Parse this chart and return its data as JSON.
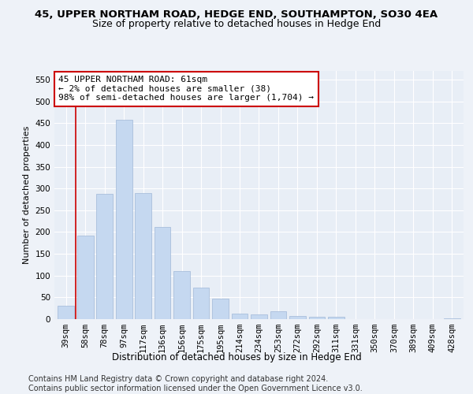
{
  "title": "45, UPPER NORTHAM ROAD, HEDGE END, SOUTHAMPTON, SO30 4EA",
  "subtitle": "Size of property relative to detached houses in Hedge End",
  "xlabel": "Distribution of detached houses by size in Hedge End",
  "ylabel": "Number of detached properties",
  "categories": [
    "39sqm",
    "58sqm",
    "78sqm",
    "97sqm",
    "117sqm",
    "136sqm",
    "156sqm",
    "175sqm",
    "195sqm",
    "214sqm",
    "234sqm",
    "253sqm",
    "272sqm",
    "292sqm",
    "311sqm",
    "331sqm",
    "350sqm",
    "370sqm",
    "389sqm",
    "409sqm",
    "428sqm"
  ],
  "values": [
    30,
    192,
    287,
    457,
    290,
    212,
    110,
    73,
    47,
    12,
    11,
    18,
    7,
    5,
    5,
    0,
    0,
    0,
    0,
    0,
    2
  ],
  "bar_color": "#c5d8f0",
  "bar_edge_color": "#a0b8d8",
  "annotation_text_line1": "45 UPPER NORTHAM ROAD: 61sqm",
  "annotation_text_line2": "← 2% of detached houses are smaller (38)",
  "annotation_text_line3": "98% of semi-detached houses are larger (1,704) →",
  "annotation_box_color": "#cc0000",
  "vline_x": 0.5,
  "ylim": [
    0,
    570
  ],
  "yticks": [
    0,
    50,
    100,
    150,
    200,
    250,
    300,
    350,
    400,
    450,
    500,
    550
  ],
  "footer_line1": "Contains HM Land Registry data © Crown copyright and database right 2024.",
  "footer_line2": "Contains public sector information licensed under the Open Government Licence v3.0.",
  "bg_color": "#eef2f8",
  "plot_bg_color": "#e8eef6",
  "grid_color": "#ffffff",
  "title_fontsize": 9.5,
  "subtitle_fontsize": 9,
  "annotation_fontsize": 8,
  "tick_fontsize": 7.5,
  "ylabel_fontsize": 8,
  "xlabel_fontsize": 8.5,
  "footer_fontsize": 7
}
